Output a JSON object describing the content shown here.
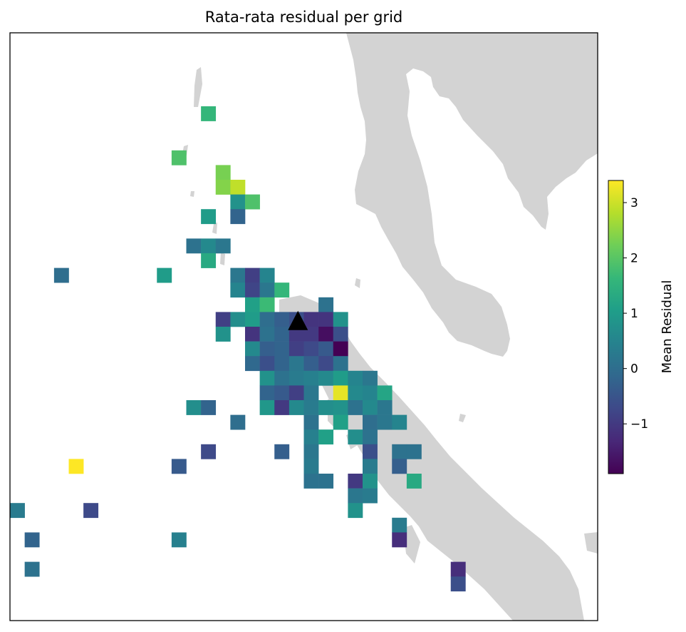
{
  "title": "Rata-rata residual per grid",
  "colorbar": {
    "label": "Mean Residual",
    "min": -1.9,
    "max": 3.4,
    "ticks": [
      3,
      2,
      1,
      0,
      -1
    ],
    "tick_labels": [
      "3",
      "2",
      "1",
      "0",
      "−1"
    ],
    "colormap": [
      "#440154",
      "#482878",
      "#3e4989",
      "#31688e",
      "#26828e",
      "#1f9e89",
      "#35b779",
      "#6ece58",
      "#b5de2b",
      "#fde725"
    ]
  },
  "land_color": "#d3d3d3",
  "marker": {
    "symbol": "triangle",
    "color": "#000000",
    "col": 19.6,
    "row": 19.6
  },
  "grid": {
    "cols": 40,
    "rows": 40
  },
  "cells": [
    {
      "c": 13,
      "r": 5,
      "v": 1.6
    },
    {
      "c": 11,
      "r": 8,
      "v": 1.9
    },
    {
      "c": 14,
      "r": 9,
      "v": 2.3
    },
    {
      "c": 14,
      "r": 10,
      "v": 2.4
    },
    {
      "c": 15,
      "r": 10,
      "v": 2.9
    },
    {
      "c": 15,
      "r": 11,
      "v": 0.8
    },
    {
      "c": 16,
      "r": 11,
      "v": 1.9
    },
    {
      "c": 13,
      "r": 12,
      "v": 1.0
    },
    {
      "c": 15,
      "r": 12,
      "v": -0.2
    },
    {
      "c": 12,
      "r": 14,
      "v": 0.1
    },
    {
      "c": 13,
      "r": 14,
      "v": 0.6
    },
    {
      "c": 14,
      "r": 14,
      "v": 0.2
    },
    {
      "c": 13,
      "r": 15,
      "v": 1.3
    },
    {
      "c": 3,
      "r": 16,
      "v": 0.0
    },
    {
      "c": 10,
      "r": 16,
      "v": 1.0
    },
    {
      "c": 15,
      "r": 16,
      "v": 0.2
    },
    {
      "c": 16,
      "r": 16,
      "v": -0.9
    },
    {
      "c": 17,
      "r": 16,
      "v": 0.5
    },
    {
      "c": 15,
      "r": 17,
      "v": 0.5
    },
    {
      "c": 16,
      "r": 17,
      "v": -0.8
    },
    {
      "c": 17,
      "r": 17,
      "v": 0.2
    },
    {
      "c": 18,
      "r": 17,
      "v": 1.6
    },
    {
      "c": 16,
      "r": 18,
      "v": 1.1
    },
    {
      "c": 17,
      "r": 18,
      "v": 1.7
    },
    {
      "c": 21,
      "r": 18,
      "v": 0.1
    },
    {
      "c": 14,
      "r": 19,
      "v": -0.9
    },
    {
      "c": 15,
      "r": 19,
      "v": 0.7
    },
    {
      "c": 16,
      "r": 19,
      "v": 1.0
    },
    {
      "c": 17,
      "r": 19,
      "v": 0.0
    },
    {
      "c": 18,
      "r": 19,
      "v": -0.3
    },
    {
      "c": 19,
      "r": 19,
      "v": -0.6
    },
    {
      "c": 20,
      "r": 19,
      "v": -1.1
    },
    {
      "c": 21,
      "r": 19,
      "v": -1.1
    },
    {
      "c": 22,
      "r": 19,
      "v": 0.8
    },
    {
      "c": 14,
      "r": 20,
      "v": 0.8
    },
    {
      "c": 16,
      "r": 20,
      "v": -1.1
    },
    {
      "c": 17,
      "r": 20,
      "v": 0.1
    },
    {
      "c": 18,
      "r": 20,
      "v": -0.2
    },
    {
      "c": 19,
      "r": 20,
      "v": -1.0
    },
    {
      "c": 20,
      "r": 20,
      "v": -1.0
    },
    {
      "c": 21,
      "r": 20,
      "v": -1.7
    },
    {
      "c": 22,
      "r": 20,
      "v": -0.6
    },
    {
      "c": 16,
      "r": 21,
      "v": 0.6
    },
    {
      "c": 17,
      "r": 21,
      "v": -0.3
    },
    {
      "c": 18,
      "r": 21,
      "v": -0.2
    },
    {
      "c": 19,
      "r": 21,
      "v": -0.9
    },
    {
      "c": 20,
      "r": 21,
      "v": -0.7
    },
    {
      "c": 21,
      "r": 21,
      "v": -0.4
    },
    {
      "c": 22,
      "r": 21,
      "v": -1.9
    },
    {
      "c": 16,
      "r": 22,
      "v": -0.1
    },
    {
      "c": 17,
      "r": 22,
      "v": -0.6
    },
    {
      "c": 18,
      "r": 22,
      "v": -0.2
    },
    {
      "c": 19,
      "r": 22,
      "v": 0.2
    },
    {
      "c": 20,
      "r": 22,
      "v": -0.3
    },
    {
      "c": 21,
      "r": 22,
      "v": -0.7
    },
    {
      "c": 22,
      "r": 22,
      "v": 0.1
    },
    {
      "c": 17,
      "r": 23,
      "v": 0.8
    },
    {
      "c": 18,
      "r": 23,
      "v": 0.1
    },
    {
      "c": 19,
      "r": 23,
      "v": 0.3
    },
    {
      "c": 20,
      "r": 23,
      "v": 0.4
    },
    {
      "c": 21,
      "r": 23,
      "v": 0.6
    },
    {
      "c": 22,
      "r": 23,
      "v": 1.0
    },
    {
      "c": 23,
      "r": 23,
      "v": 0.5
    },
    {
      "c": 24,
      "r": 23,
      "v": 0.2
    },
    {
      "c": 17,
      "r": 24,
      "v": -0.2
    },
    {
      "c": 18,
      "r": 24,
      "v": -0.4
    },
    {
      "c": 19,
      "r": 24,
      "v": -0.9
    },
    {
      "c": 20,
      "r": 24,
      "v": 0.2
    },
    {
      "c": 22,
      "r": 24,
      "v": 3.2
    },
    {
      "c": 23,
      "r": 24,
      "v": 0.6
    },
    {
      "c": 24,
      "r": 24,
      "v": 0.5
    },
    {
      "c": 25,
      "r": 24,
      "v": 1.2
    },
    {
      "c": 12,
      "r": 25,
      "v": 0.7
    },
    {
      "c": 13,
      "r": 25,
      "v": -0.2
    },
    {
      "c": 17,
      "r": 25,
      "v": 0.9
    },
    {
      "c": 18,
      "r": 25,
      "v": -1.0
    },
    {
      "c": 19,
      "r": 25,
      "v": 0.6
    },
    {
      "c": 20,
      "r": 25,
      "v": 0.3
    },
    {
      "c": 21,
      "r": 25,
      "v": 0.7
    },
    {
      "c": 22,
      "r": 25,
      "v": 0.8
    },
    {
      "c": 23,
      "r": 25,
      "v": 0.1
    },
    {
      "c": 24,
      "r": 25,
      "v": 0.6
    },
    {
      "c": 25,
      "r": 25,
      "v": 0.2
    },
    {
      "c": 15,
      "r": 26,
      "v": 0.0
    },
    {
      "c": 20,
      "r": 26,
      "v": 0.1
    },
    {
      "c": 22,
      "r": 26,
      "v": 1.1
    },
    {
      "c": 24,
      "r": 26,
      "v": 0.0
    },
    {
      "c": 25,
      "r": 26,
      "v": 0.2
    },
    {
      "c": 26,
      "r": 26,
      "v": 0.5
    },
    {
      "c": 20,
      "r": 27,
      "v": 0.4
    },
    {
      "c": 21,
      "r": 27,
      "v": 1.1
    },
    {
      "c": 23,
      "r": 27,
      "v": 0.7
    },
    {
      "c": 24,
      "r": 27,
      "v": 0.1
    },
    {
      "c": 13,
      "r": 28,
      "v": -0.7
    },
    {
      "c": 18,
      "r": 28,
      "v": -0.3
    },
    {
      "c": 20,
      "r": 28,
      "v": 0.2
    },
    {
      "c": 24,
      "r": 28,
      "v": -0.6
    },
    {
      "c": 26,
      "r": 28,
      "v": 0.1
    },
    {
      "c": 27,
      "r": 28,
      "v": 0.1
    },
    {
      "c": 4,
      "r": 29,
      "v": 3.4
    },
    {
      "c": 11,
      "r": 29,
      "v": -0.4
    },
    {
      "c": 20,
      "r": 29,
      "v": 0.3
    },
    {
      "c": 24,
      "r": 29,
      "v": 0.3
    },
    {
      "c": 26,
      "r": 29,
      "v": -0.3
    },
    {
      "c": 20,
      "r": 30,
      "v": 0.1
    },
    {
      "c": 21,
      "r": 30,
      "v": 0.1
    },
    {
      "c": 23,
      "r": 30,
      "v": -1.0
    },
    {
      "c": 24,
      "r": 30,
      "v": 0.8
    },
    {
      "c": 27,
      "r": 30,
      "v": 1.3
    },
    {
      "c": 23,
      "r": 31,
      "v": 0.2
    },
    {
      "c": 24,
      "r": 31,
      "v": 0.3
    },
    {
      "c": 0,
      "r": 32,
      "v": 0.3
    },
    {
      "c": 5,
      "r": 32,
      "v": -0.7
    },
    {
      "c": 23,
      "r": 32,
      "v": 0.8
    },
    {
      "c": 26,
      "r": 33,
      "v": 0.3
    },
    {
      "c": 1,
      "r": 34,
      "v": -0.2
    },
    {
      "c": 11,
      "r": 34,
      "v": 0.4
    },
    {
      "c": 26,
      "r": 34,
      "v": -1.2
    },
    {
      "c": 1,
      "r": 36,
      "v": 0.1
    },
    {
      "c": 30,
      "r": 36,
      "v": -1.2
    },
    {
      "c": 30,
      "r": 37,
      "v": -0.6
    }
  ]
}
